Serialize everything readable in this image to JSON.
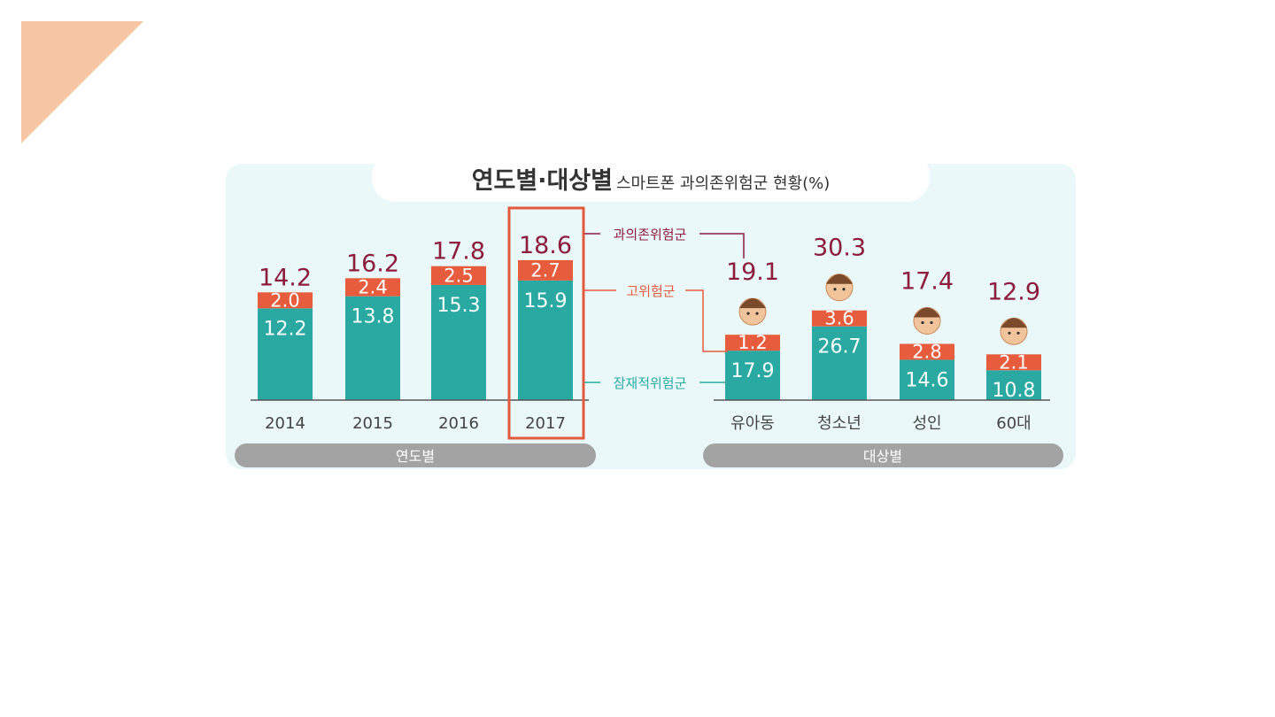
{
  "colors": {
    "background_panel": "#eaf8fa",
    "potential": "#2aa9a2",
    "high_risk": "#e85c3e",
    "total_label": "#8c1d3c",
    "highlight_box": "#e25a3c",
    "category_bar": "#a3a3a3",
    "corner_accent": "#f6c6a4"
  },
  "chart_data": {
    "type": "bar",
    "title": "연도별·대상별",
    "subtitle": "스마트폰 과의존위험군 현황(%)",
    "legend": {
      "total": "과의존위험군",
      "high": "고위험군",
      "potential": "잠재적위험군"
    },
    "groups": [
      {
        "label": "연도별",
        "categories": [
          "2014",
          "2015",
          "2016",
          "2017"
        ],
        "series": [
          {
            "name": "잠재적위험군",
            "values": [
              12.2,
              13.8,
              15.3,
              15.9
            ]
          },
          {
            "name": "고위험군",
            "values": [
              2.0,
              2.4,
              2.5,
              2.7
            ]
          }
        ],
        "totals": [
          14.2,
          16.2,
          17.8,
          18.6
        ],
        "highlight": "2017"
      },
      {
        "label": "대상별",
        "categories": [
          "유아동",
          "청소년",
          "성인",
          "60대"
        ],
        "series": [
          {
            "name": "잠재적위험군",
            "values": [
              17.9,
              26.7,
              14.6,
              10.8
            ]
          },
          {
            "name": "고위험군",
            "values": [
              1.2,
              3.6,
              2.8,
              2.1
            ]
          }
        ],
        "totals": [
          19.1,
          30.3,
          17.4,
          12.9
        ]
      }
    ]
  }
}
